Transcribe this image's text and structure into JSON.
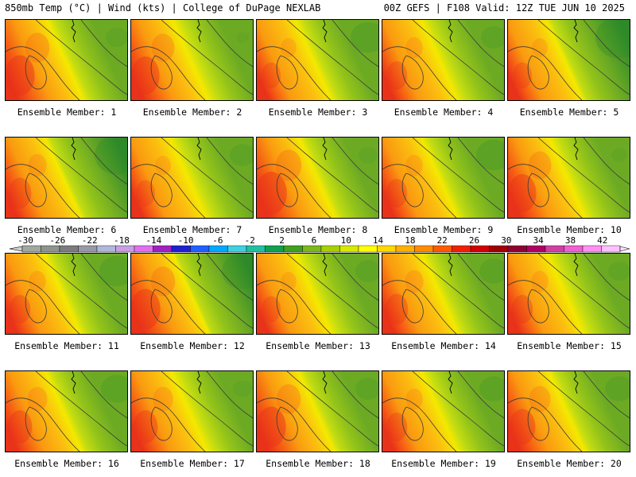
{
  "header": {
    "left": "850mb Temp (°C) | Wind (kts) | College of DuPage NEXLAB",
    "right": "00Z GEFS | F108 Valid: 12Z TUE JUN 10 2025"
  },
  "panels": [
    {
      "label": "Ensemble Member: 1",
      "warmth": 0.85,
      "cool": 0.35
    },
    {
      "label": "Ensemble Member: 2",
      "warmth": 0.8,
      "cool": 0.2
    },
    {
      "label": "Ensemble Member: 3",
      "warmth": 0.55,
      "cool": 0.55
    },
    {
      "label": "Ensemble Member: 4",
      "warmth": 0.6,
      "cool": 0.4
    },
    {
      "label": "Ensemble Member: 5",
      "warmth": 0.55,
      "cool": 0.75
    },
    {
      "label": "Ensemble Member: 6",
      "warmth": 0.65,
      "cool": 0.7
    },
    {
      "label": "Ensemble Member: 7",
      "warmth": 0.55,
      "cool": 0.4
    },
    {
      "label": "Ensemble Member: 8",
      "warmth": 0.9,
      "cool": 0.3
    },
    {
      "label": "Ensemble Member: 9",
      "warmth": 0.6,
      "cool": 0.55
    },
    {
      "label": "Ensemble Member: 10",
      "warmth": 0.8,
      "cool": 0.25
    },
    {
      "label": "Ensemble Member: 11",
      "warmth": 0.6,
      "cool": 0.55
    },
    {
      "label": "Ensemble Member: 12",
      "warmth": 0.85,
      "cool": 0.65
    },
    {
      "label": "Ensemble Member: 13",
      "warmth": 0.55,
      "cool": 0.4
    },
    {
      "label": "Ensemble Member: 14",
      "warmth": 0.65,
      "cool": 0.45
    },
    {
      "label": "Ensemble Member: 15",
      "warmth": 0.6,
      "cool": 0.35
    },
    {
      "label": "Ensemble Member: 16",
      "warmth": 0.7,
      "cool": 0.5
    },
    {
      "label": "Ensemble Member: 17",
      "warmth": 0.7,
      "cool": 0.3
    },
    {
      "label": "Ensemble Member: 18",
      "warmth": 0.85,
      "cool": 0.4
    },
    {
      "label": "Ensemble Member: 19",
      "warmth": 0.6,
      "cool": 0.45
    },
    {
      "label": "Ensemble Member: 20",
      "warmth": 0.75,
      "cool": 0.45
    }
  ],
  "legend": {
    "labels": [
      "-30",
      "-26",
      "-22",
      "-18",
      "-14",
      "-10",
      "-6",
      "-2",
      "2",
      "6",
      "10",
      "14",
      "18",
      "22",
      "26",
      "30",
      "34",
      "38",
      "42"
    ],
    "colors": [
      "#a0a8a0",
      "#8c948c",
      "#7c7c7c",
      "#9898a8",
      "#b0b8d8",
      "#c8a0e0",
      "#e070f0",
      "#a020c0",
      "#2020d0",
      "#2060ff",
      "#00a8ff",
      "#40d0e0",
      "#20c0a0",
      "#10a050",
      "#40a020",
      "#7cb81c",
      "#a8d000",
      "#d8e800",
      "#ffff00",
      "#ffd800",
      "#ffb000",
      "#ff8c00",
      "#ff5a00",
      "#f02000",
      "#d00000",
      "#a00000",
      "#900030",
      "#b00060",
      "#d040a0",
      "#f060d0",
      "#ff90f0",
      "#ffc0ff"
    ]
  },
  "palette": {
    "deep_red": "#e8321a",
    "red": "#f55a14",
    "orange": "#fa9a10",
    "gold": "#fbc010",
    "yellow": "#f4e800",
    "yellow_green": "#c2dc12",
    "light_green": "#94c41a",
    "green": "#6caa24",
    "dark_green": "#2e8a2a",
    "contour": "#3a3a3a",
    "coast": "#000000"
  }
}
